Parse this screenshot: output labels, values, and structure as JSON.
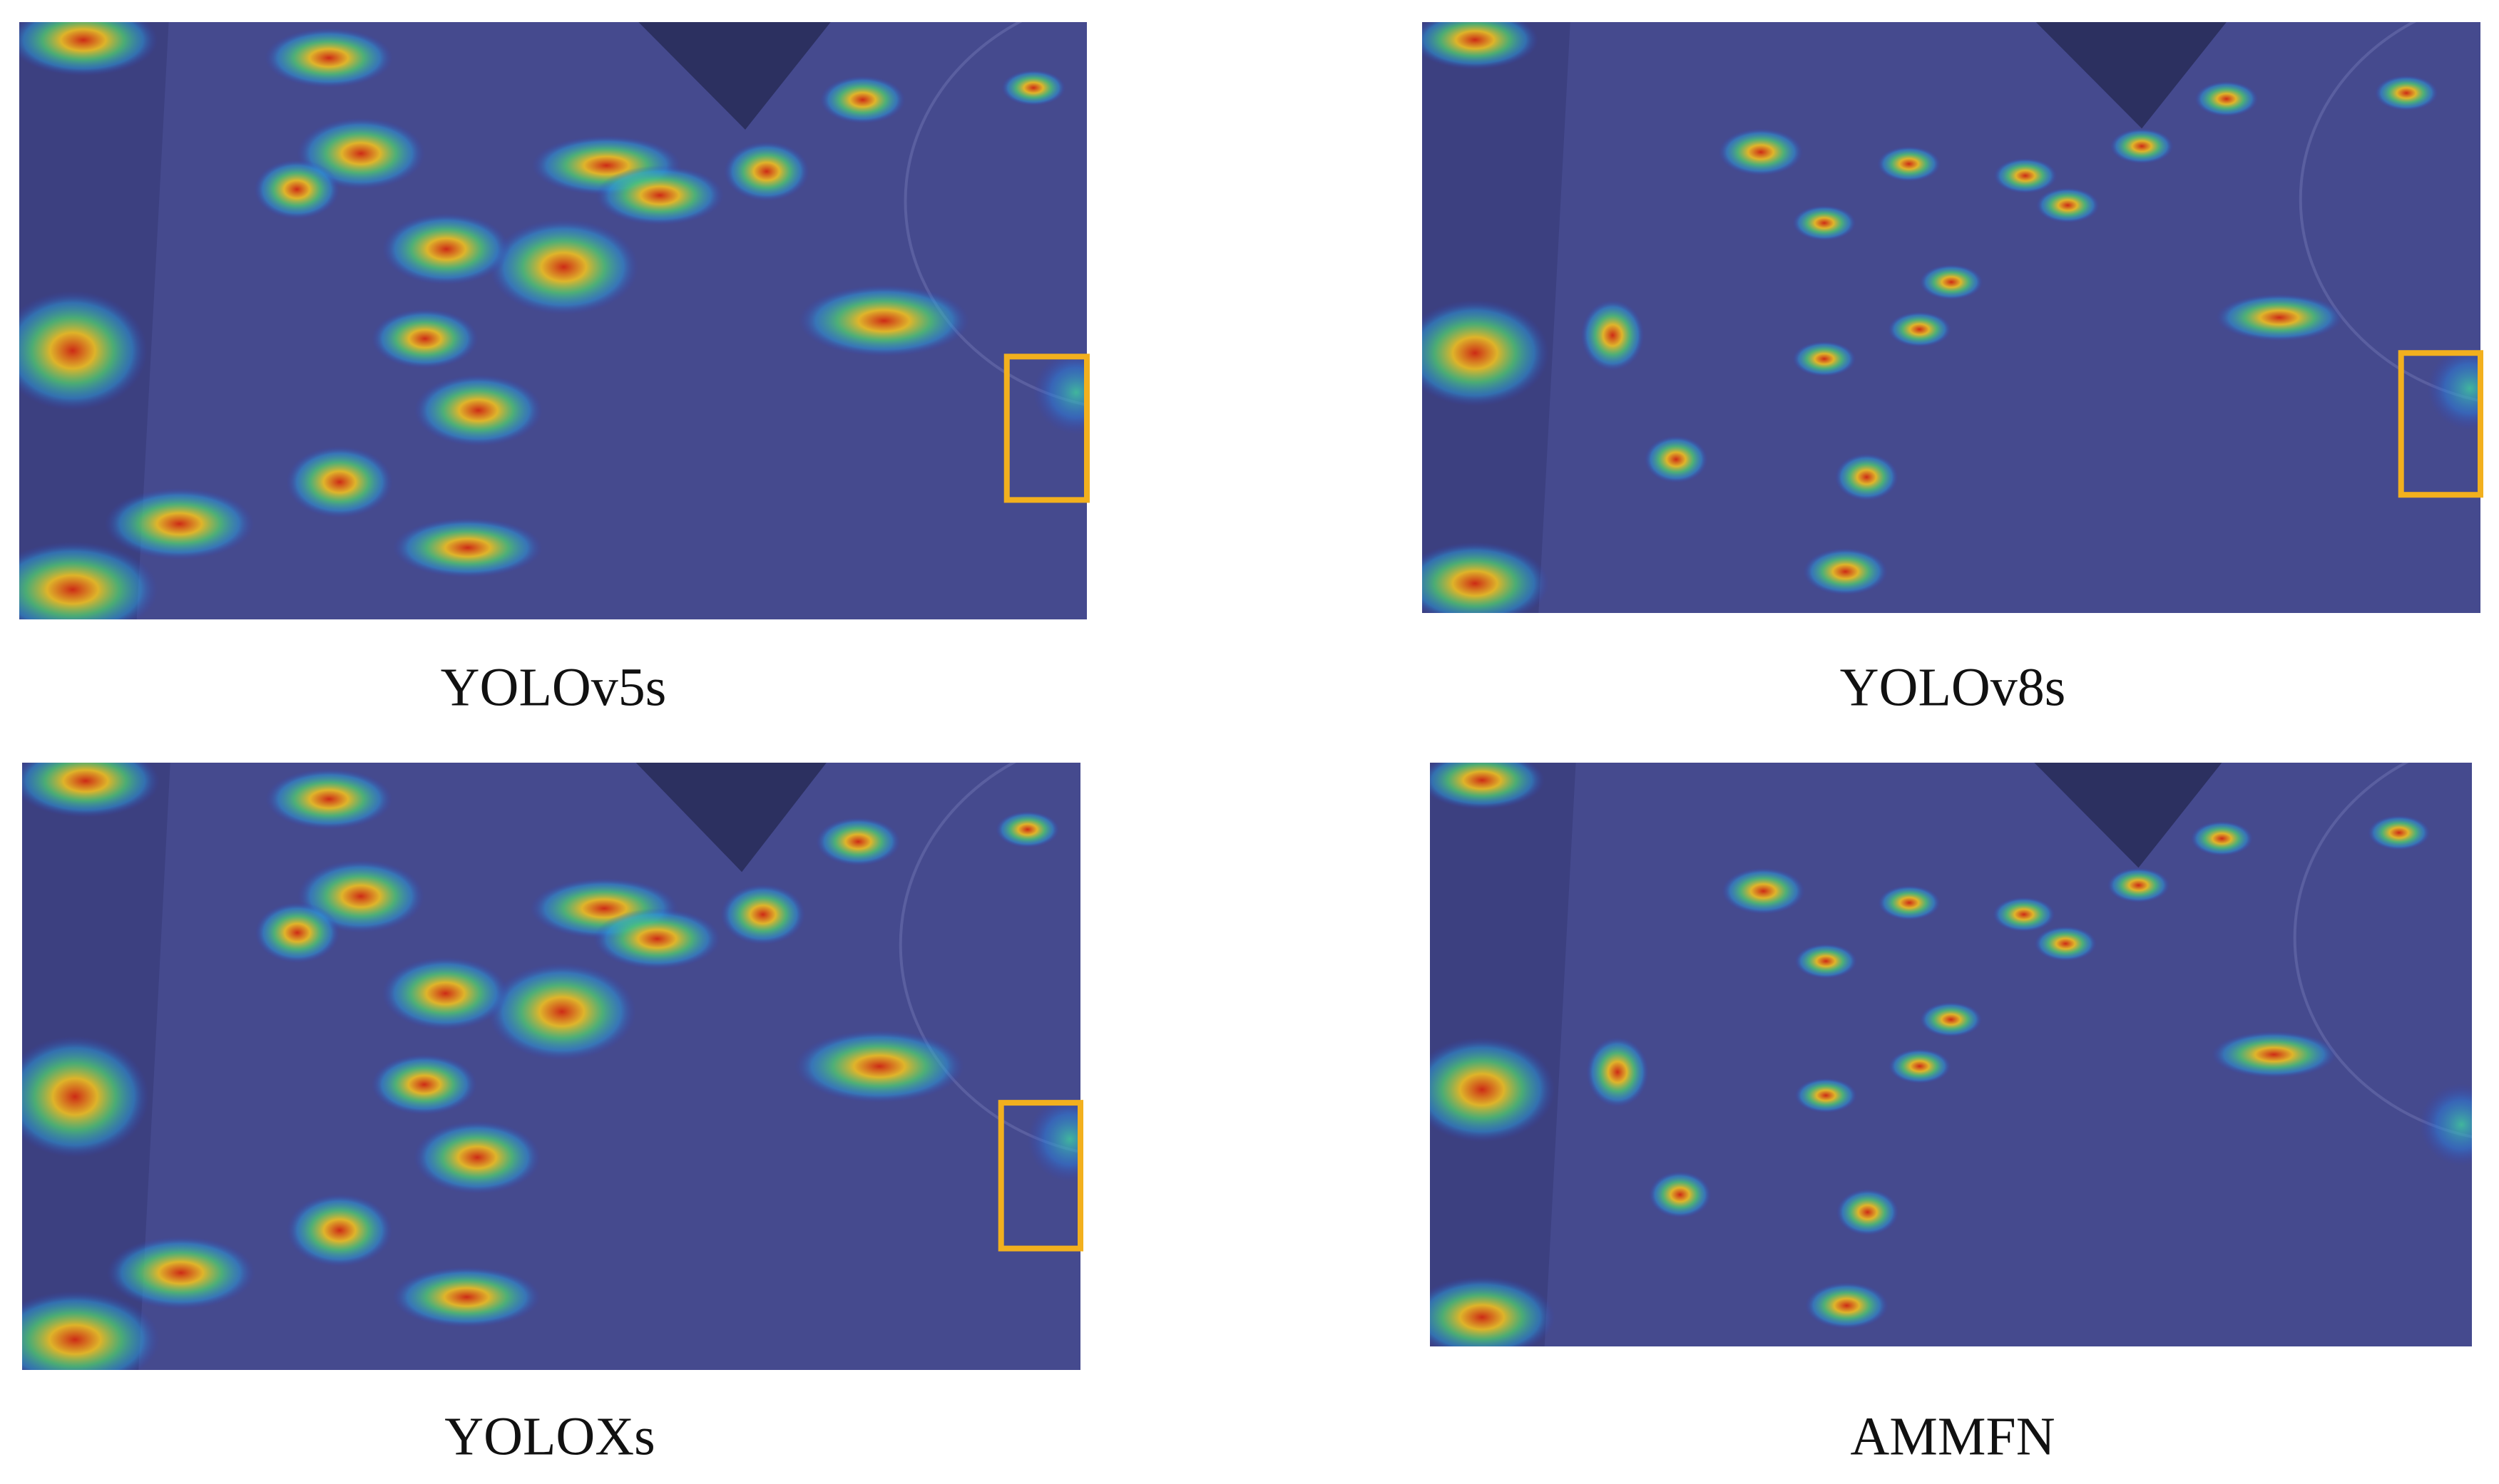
{
  "panels": [
    {
      "caption": "YOLOv5s"
    },
    {
      "caption": "YOLOv8s"
    },
    {
      "caption": "YOLOXs"
    },
    {
      "caption": "AMMFN"
    }
  ]
}
